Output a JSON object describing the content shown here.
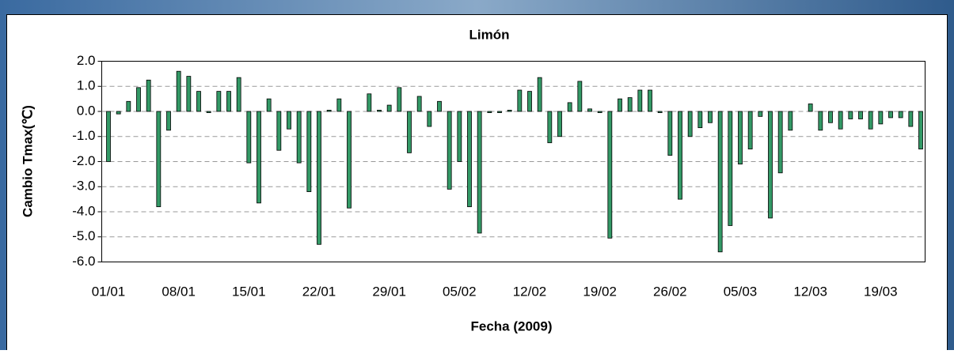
{
  "chart_data": {
    "type": "bar",
    "title": "Limón",
    "xlabel": "Fecha (2009)",
    "ylabel": "Cambio Tmax(℃)",
    "categories": [
      "01/01",
      null,
      null,
      null,
      null,
      null,
      null,
      "08/01",
      null,
      null,
      null,
      null,
      null,
      null,
      "15/01",
      null,
      null,
      null,
      null,
      null,
      null,
      "22/01",
      null,
      null,
      null,
      null,
      null,
      null,
      "29/01",
      null,
      null,
      null,
      null,
      null,
      null,
      "05/02",
      null,
      null,
      null,
      null,
      null,
      null,
      "12/02",
      null,
      null,
      null,
      null,
      null,
      null,
      "19/02",
      null,
      null,
      null,
      null,
      null,
      null,
      "26/02",
      null,
      null,
      null,
      null,
      null,
      null,
      "05/03",
      null,
      null,
      null,
      null,
      null,
      null,
      "12/03",
      null,
      null,
      null,
      null,
      null,
      null,
      "19/03",
      null,
      null,
      null,
      null
    ],
    "values": [
      -2.0,
      -0.1,
      0.4,
      0.95,
      1.25,
      -3.8,
      -0.75,
      1.6,
      1.4,
      0.8,
      -0.05,
      0.8,
      0.8,
      1.35,
      -2.05,
      -3.65,
      0.5,
      -1.55,
      -0.7,
      -2.05,
      -3.2,
      -5.3,
      0.05,
      0.5,
      -3.85,
      0,
      0.7,
      0.05,
      0.25,
      0.95,
      -1.65,
      0.6,
      -0.6,
      0.4,
      -3.1,
      -2.0,
      -3.8,
      -4.85,
      -0.05,
      -0.05,
      0.05,
      0.85,
      0.8,
      1.35,
      -1.25,
      -1.0,
      0.35,
      1.2,
      0.1,
      -0.05,
      -5.05,
      0.5,
      0.55,
      0.85,
      0.85,
      -0.05,
      -1.75,
      -3.5,
      -1.0,
      -0.65,
      -0.45,
      -5.6,
      -4.55,
      -2.1,
      -1.5,
      -0.2,
      -4.25,
      -2.45,
      -0.75,
      0,
      0.3,
      -0.75,
      -0.45,
      -0.7,
      -0.3,
      -0.3,
      -0.7,
      -0.5,
      -0.25,
      -0.25,
      -0.6,
      -1.5
    ],
    "color": "#339966",
    "ylim": [
      -6,
      2
    ],
    "yticks": [
      {
        "value": 2,
        "label": "2.0"
      },
      {
        "value": 1,
        "label": "1.0"
      },
      {
        "value": 0,
        "label": "0.0"
      },
      {
        "value": -1,
        "label": "-1.0"
      },
      {
        "value": -2,
        "label": "-2.0"
      },
      {
        "value": -3,
        "label": "-3.0"
      },
      {
        "value": -4,
        "label": "-4.0"
      },
      {
        "value": -5,
        "label": "-5.0"
      },
      {
        "value": -6,
        "label": "-6.0"
      }
    ],
    "grid": true
  }
}
